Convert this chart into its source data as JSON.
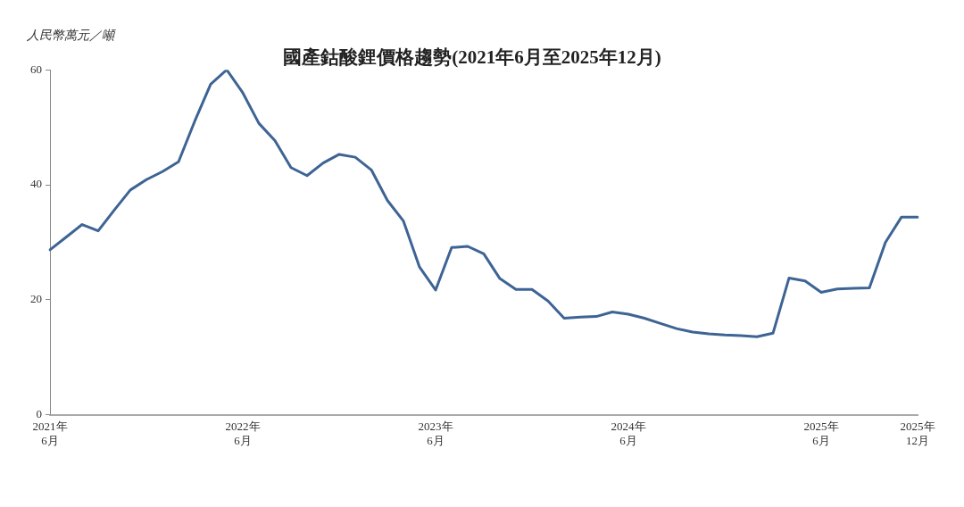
{
  "chart_data": {
    "type": "line",
    "title": "國產鈷酸鋰價格趨勢(2021年6月至2025年12月)",
    "ylabel": "人民幣萬元／噸",
    "categories": [
      "2021年\n6月",
      null,
      null,
      null,
      null,
      null,
      null,
      null,
      null,
      null,
      null,
      null,
      "2022年\n6月",
      null,
      null,
      null,
      null,
      null,
      null,
      null,
      null,
      null,
      null,
      null,
      "2023年\n6月",
      null,
      null,
      null,
      null,
      null,
      null,
      null,
      null,
      null,
      null,
      null,
      "2024年\n6月",
      null,
      null,
      null,
      null,
      null,
      null,
      null,
      null,
      null,
      null,
      null,
      "2025年\n6月",
      null,
      null,
      null,
      null,
      null,
      "2025年\n12月"
    ],
    "series": [
      {
        "color": "#3d6494",
        "values": [
          28.7,
          30.9,
          33.1,
          32.0,
          35.6,
          39.1,
          40.9,
          42.3,
          44.0,
          51.0,
          57.5,
          60.0,
          56.0,
          50.7,
          47.7,
          43.0,
          41.6,
          43.8,
          45.3,
          44.8,
          42.6,
          37.3,
          33.7,
          25.7,
          21.7,
          29.1,
          29.3,
          28.0,
          23.7,
          21.8,
          21.8,
          19.8,
          16.8,
          17.0,
          17.1,
          17.9,
          17.5,
          16.8,
          15.9,
          15.0,
          14.4,
          14.1,
          13.9,
          13.8,
          13.6,
          14.2,
          23.8,
          23.3,
          21.3,
          21.9,
          22.0,
          22.1,
          30.0,
          34.4,
          34.4
        ]
      }
    ],
    "ylim": [
      0,
      60
    ],
    "yticks": [
      0,
      20,
      40,
      60
    ],
    "grid": false,
    "legend": false,
    "marker": "none",
    "line_style": "solid"
  }
}
